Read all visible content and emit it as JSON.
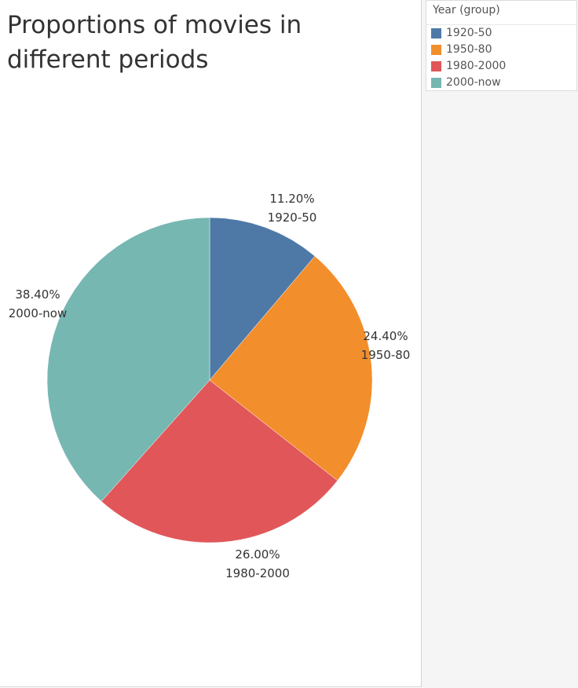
{
  "chart_data": {
    "type": "pie",
    "title": "Proportions of movies in different periods",
    "categories": [
      "1920-50",
      "1950-80",
      "1980-2000",
      "2000-now"
    ],
    "values": [
      11.2,
      24.4,
      26.0,
      38.4
    ],
    "value_labels": [
      "11.20%",
      "24.40%",
      "26.00%",
      "38.40%"
    ],
    "colors": [
      "#4e79a7",
      "#f28e2b",
      "#e15759",
      "#76b7b2"
    ],
    "legend": {
      "title": "Year (group)",
      "placement": "top-right",
      "entries": [
        "1920-50",
        "1950-80",
        "1980-2000",
        "2000-now"
      ]
    }
  }
}
